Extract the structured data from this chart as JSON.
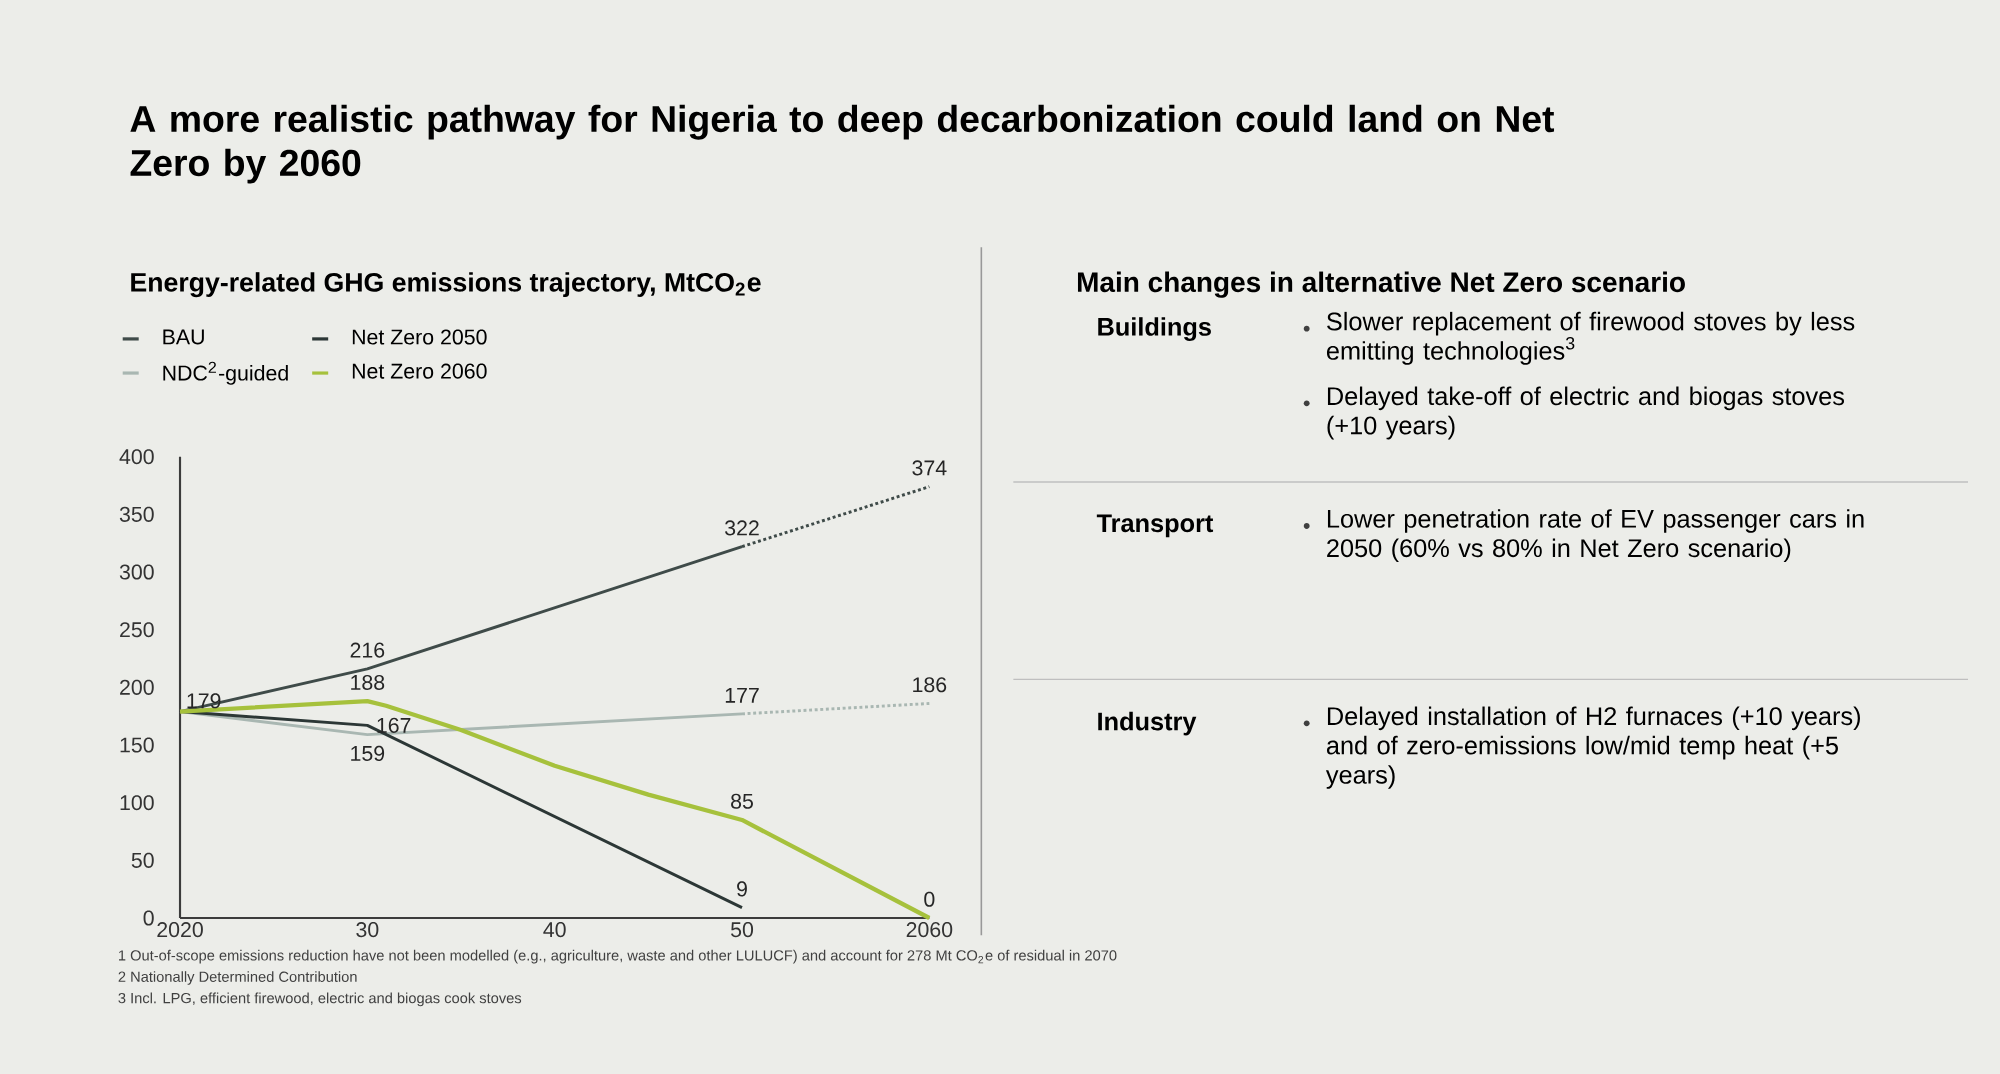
{
  "chart_data": [
    {
      "type": "line",
      "title": "A more realistic pathway for Nigeria to deep decarbonization could land on Net Zero by 2060",
      "subtitle": "Energy-related GHG emissions trajectory, MtCO$_{2}$e",
      "xlim": [
        2020,
        2060
      ],
      "xticks": [
        {
          "value": 2020,
          "label": "2020"
        },
        {
          "value": 2030,
          "label": "30"
        },
        {
          "value": 2040,
          "label": "40"
        },
        {
          "value": 2050,
          "label": "50"
        },
        {
          "value": 2060,
          "label": "2060"
        }
      ],
      "ylim": [
        0,
        400
      ],
      "yticks": [
        0,
        50,
        100,
        150,
        200,
        250,
        300,
        350,
        400
      ],
      "grid": false,
      "legend": "top left",
      "series": [
        {
          "name": "BAU",
          "color": "#3f4b49",
          "x": [
            2020,
            2030,
            2050
          ],
          "values": [
            179,
            216,
            322
          ],
          "value_labels": [
            "179",
            "216",
            "322"
          ],
          "line_style": "solid"
        },
        {
          "color": "#3f4b49",
          "x": [
            2050,
            2060
          ],
          "values": [
            322,
            374
          ],
          "value_labels": [
            null,
            "374"
          ],
          "line_style": "dotted"
        },
        {
          "name": "NDC$^{2}$-guided",
          "color": "#a9b7b2",
          "x": [
            2020,
            2030,
            2050
          ],
          "values": [
            179,
            159,
            177
          ],
          "value_labels": [
            null,
            "159",
            "177"
          ],
          "line_style": "solid"
        },
        {
          "color": "#a9b7b2",
          "x": [
            2050,
            2060
          ],
          "values": [
            177,
            186
          ],
          "value_labels": [
            null,
            "186"
          ],
          "line_style": "dotted"
        },
        {
          "name": "Net Zero 2050",
          "color": "#2c3736",
          "x": [
            2020,
            2030,
            2050
          ],
          "values": [
            179,
            167,
            9
          ],
          "value_labels": [
            null,
            "167",
            "9"
          ],
          "line_style": "solid"
        },
        {
          "name": "Net Zero 2060",
          "color": "#a6c13c",
          "x": [
            2020,
            2030,
            2031,
            2035,
            2040,
            2045,
            2050,
            2060
          ],
          "values": [
            179,
            188,
            184,
            163,
            132,
            107,
            85,
            0
          ],
          "value_labels": [
            null,
            "188",
            null,
            null,
            null,
            null,
            "85",
            "0"
          ],
          "line_style": "solid"
        }
      ],
      "annotations": [
        "1 Out-of-scope emissions reduction have not been modelled (e.g., agriculture, waste and other LULUCF) and account for 278 Mt CO$_{2}$e of residual in 2070",
        "2 Nationally Determined Contribution",
        "3 Incl. LPG, efficient firewood, electric and biogas cook stoves"
      ]
    },
    {
      "type": "other",
      "title": "Main changes in alternative Net Zero scenario"
    },
    {
      "type": "other",
      "title": "Buildings",
      "annotations": [
        "Slower replacement of firewood stoves by less emitting technologies$^{3}$",
        "Delayed take-off of electric and biogas stoves (+10 years)"
      ]
    },
    {
      "type": "other",
      "title": "Transport",
      "annotations": [
        "Lower penetration rate of EV passenger cars in 2050 (60% vs 80% in Net Zero scenario)"
      ]
    },
    {
      "type": "other",
      "title": "Industry",
      "annotations": [
        "Delayed installation of H2 furnaces (+10 years) and of zero-emissions low/mid temp heat (+5 years)"
      ]
    }
  ]
}
